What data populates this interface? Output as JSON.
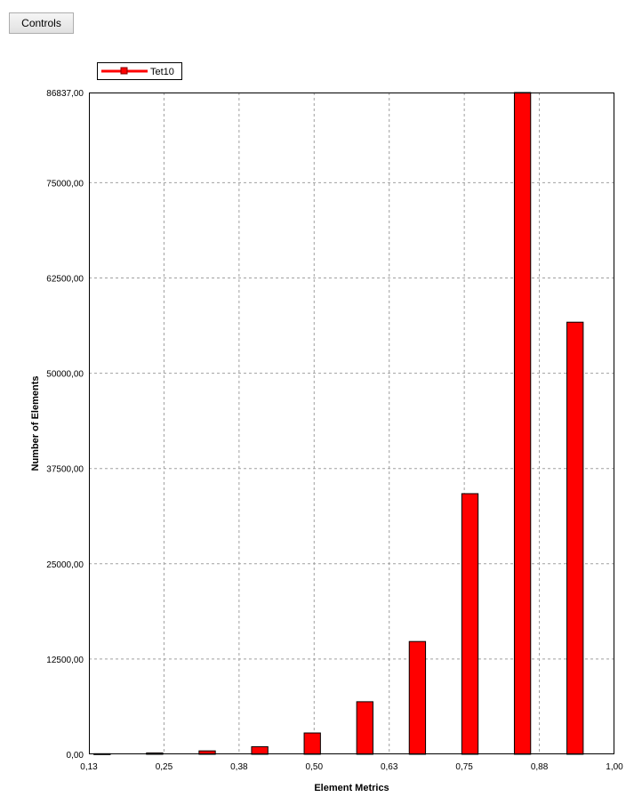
{
  "controls": {
    "label": "Controls"
  },
  "chart_data": {
    "type": "bar",
    "title": "",
    "xlabel": "Element Metrics",
    "ylabel": "Number of Elements",
    "legend": {
      "position": "top-left",
      "entries": [
        "Tet10"
      ]
    },
    "grid": true,
    "xlim": [
      0.13,
      1.0
    ],
    "ylim": [
      0,
      86837
    ],
    "x_ticks": [
      "0,13",
      "0,25",
      "0,38",
      "0,50",
      "0,63",
      "0,75",
      "0,88",
      "1,00"
    ],
    "y_ticks": [
      "0,00",
      "12500,00",
      "25000,00",
      "37500,00",
      "50000,00",
      "62500,00",
      "75000,00",
      "86837,00"
    ],
    "y_tick_values": [
      0,
      12500,
      25000,
      37500,
      50000,
      62500,
      75000,
      86837
    ],
    "series": [
      {
        "name": "Tet10",
        "color": "#ff0000",
        "bin_width": 0.0435,
        "x": [
          0.1518,
          0.2388,
          0.3258,
          0.4128,
          0.4998,
          0.5868,
          0.6738,
          0.7608,
          0.8478,
          0.9348
        ],
        "values": [
          80,
          180,
          450,
          1000,
          2800,
          6900,
          14800,
          34200,
          86837,
          56700
        ]
      }
    ]
  }
}
